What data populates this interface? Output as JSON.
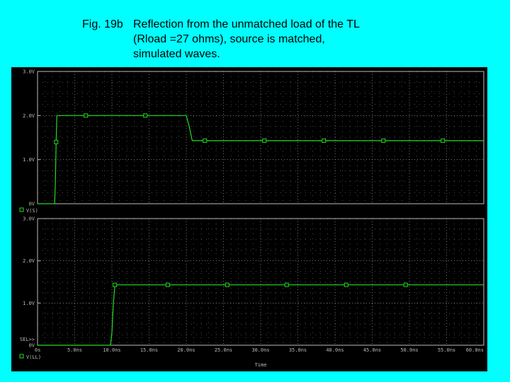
{
  "caption": {
    "label": "Fig. 19b",
    "lines": [
      "Reflection from the unmatched load of the TL",
      "(Rload =27 ohms), source is matched,",
      "simulated waves."
    ]
  },
  "colors": {
    "background": "#00ffff",
    "plot_background": "#000000",
    "trace": "#22dd22",
    "grid": "#bbbbbb",
    "text": "#bbbbbb"
  },
  "chart_data": [
    {
      "type": "line",
      "x_unit": "ns",
      "y_unit": "V",
      "xlim": [
        0,
        60
      ],
      "ylim": [
        0,
        3
      ],
      "yticks": [
        0,
        1,
        2,
        3
      ],
      "ytick_labels": [
        "0V",
        "1.0V",
        "2.0V",
        "3.0V"
      ],
      "legend": "V(S)",
      "grid": true,
      "series": [
        {
          "name": "V(S)",
          "x": [
            0,
            2.3,
            2.4,
            2.5,
            2.6,
            6,
            20,
            20.4,
            20.8,
            60
          ],
          "y": [
            0,
            0,
            0.5,
            1.4,
            2.0,
            2.0,
            2.0,
            1.75,
            1.43,
            1.43
          ]
        }
      ],
      "marker_x": [
        2.5,
        6.5,
        14.5,
        22.5,
        30.5,
        38.5,
        46.5,
        54.5
      ]
    },
    {
      "type": "line",
      "x_unit": "ns",
      "y_unit": "V",
      "xlim": [
        0,
        60
      ],
      "ylim": [
        0,
        3
      ],
      "yticks": [
        0,
        1,
        2,
        3
      ],
      "ytick_labels": [
        "0V",
        "1.0V",
        "2.0V",
        "3.0V"
      ],
      "extra_label": "SEL>>",
      "legend": "V(LL)",
      "xlabel": "Time",
      "xticks": [
        0,
        5,
        10,
        15,
        20,
        25,
        30,
        35,
        40,
        45,
        50,
        55,
        60
      ],
      "xtick_labels": [
        "0s",
        "5.0ns",
        "10.0ns",
        "15.0ns",
        "20.0ns",
        "25.0ns",
        "30.0ns",
        "35.0ns",
        "40.0ns",
        "45.0ns",
        "50.0ns",
        "55.0ns",
        "60.0ns"
      ],
      "grid": true,
      "series": [
        {
          "name": "V(LL)",
          "x": [
            0,
            9.8,
            10.0,
            10.2,
            10.4,
            60
          ],
          "y": [
            0,
            0,
            0.3,
            1.0,
            1.43,
            1.43
          ]
        }
      ],
      "marker_x": [
        10.4,
        17.5,
        25.5,
        33.5,
        41.5,
        49.5
      ]
    }
  ]
}
